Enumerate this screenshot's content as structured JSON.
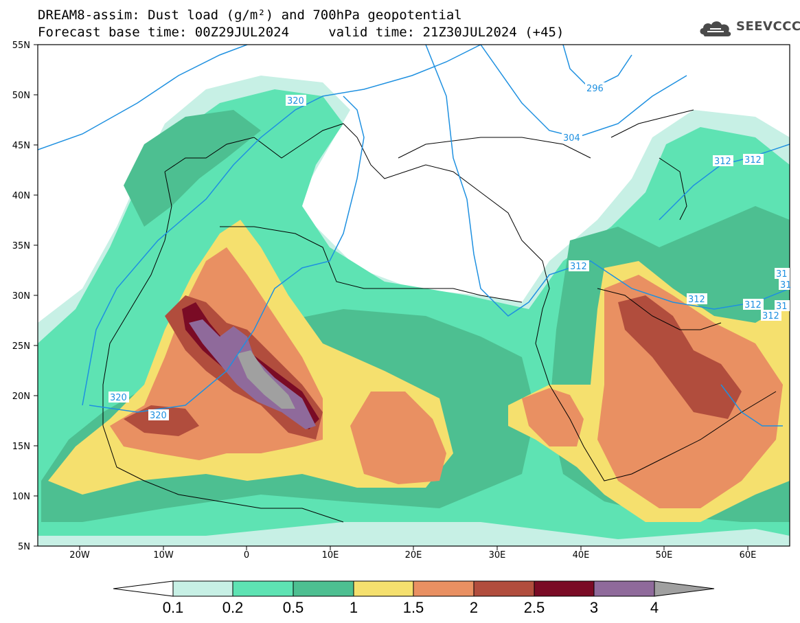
{
  "title": {
    "line1": "DREAM8-assim: Dust load (g/m²) and 700hPa geopotential",
    "line2": "Forecast base time: 00Z29JUL2024     valid time: 21Z30JUL2024 (+45)"
  },
  "logo": {
    "text": "SEEVCCC",
    "icon": "cloud-icon"
  },
  "axes": {
    "lat_labels": [
      "55N",
      "50N",
      "45N",
      "40N",
      "35N",
      "30N",
      "25N",
      "20N",
      "15N",
      "10N",
      "5N"
    ],
    "lon_labels": [
      "20W",
      "10W",
      "0",
      "10E",
      "20E",
      "30E",
      "40E",
      "50E",
      "60E"
    ]
  },
  "contour_labels": [
    "296",
    "304",
    "312",
    "312",
    "312",
    "312",
    "312",
    "312",
    "320",
    "320",
    "320",
    "31",
    "31",
    "31"
  ],
  "colorbar": {
    "ticks": [
      "0.1",
      "0.2",
      "0.5",
      "1",
      "1.5",
      "2",
      "2.5",
      "3",
      "4"
    ],
    "colors": [
      "#c7f0e5",
      "#5ee3b3",
      "#4dbf91",
      "#f5e06e",
      "#e99062",
      "#b14d3d",
      "#7a0b25",
      "#8f6a9b",
      "#a0a0a0"
    ]
  },
  "colors": {
    "background": "#ffffff",
    "contour": "#1e90e0",
    "coastline": "#000000"
  }
}
